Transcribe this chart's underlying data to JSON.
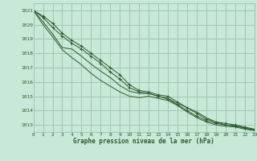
{
  "bg_color": "#c8e8d8",
  "grid_color": "#a0c8b0",
  "line_color": "#2d5a2d",
  "title": "Graphe pression niveau de la mer (hPa)",
  "xlim": [
    0,
    23
  ],
  "ylim": [
    1012.5,
    1021.5
  ],
  "yticks": [
    1013,
    1014,
    1015,
    1016,
    1017,
    1018,
    1019,
    1020,
    1021
  ],
  "xticks": [
    0,
    1,
    2,
    3,
    4,
    5,
    6,
    7,
    8,
    9,
    10,
    11,
    12,
    13,
    14,
    15,
    16,
    17,
    18,
    19,
    20,
    21,
    22,
    23
  ],
  "series": [
    [
      1021.0,
      1020.6,
      1020.1,
      1019.4,
      1018.9,
      1018.5,
      1018.0,
      1017.5,
      1017.0,
      1016.5,
      1015.8,
      1015.4,
      1015.3,
      1015.1,
      1015.0,
      1014.6,
      1014.2,
      1013.8,
      1013.4,
      1013.2,
      1013.1,
      1013.0,
      1012.85,
      1012.7
    ],
    [
      1021.0,
      1020.5,
      1019.8,
      1019.2,
      1018.7,
      1018.3,
      1017.8,
      1017.3,
      1016.7,
      1016.2,
      1015.6,
      1015.3,
      1015.2,
      1015.0,
      1014.8,
      1014.4,
      1014.0,
      1013.6,
      1013.3,
      1013.1,
      1013.0,
      1012.9,
      1012.8,
      1012.65
    ],
    [
      1021.0,
      1020.2,
      1019.35,
      1018.4,
      1018.3,
      1017.8,
      1017.25,
      1016.75,
      1016.3,
      1015.75,
      1015.35,
      1015.2,
      1015.2,
      1015.0,
      1014.85,
      1014.5,
      1014.2,
      1013.9,
      1013.5,
      1013.2,
      1013.0,
      1012.95,
      1012.75,
      1012.65
    ],
    [
      1021.0,
      1020.0,
      1019.15,
      1018.25,
      1017.7,
      1017.2,
      1016.6,
      1016.1,
      1015.7,
      1015.3,
      1015.0,
      1014.9,
      1015.0,
      1014.85,
      1014.7,
      1014.35,
      1013.9,
      1013.5,
      1013.2,
      1013.0,
      1012.9,
      1012.85,
      1012.7,
      1012.6
    ]
  ],
  "marker_series": [
    [
      0,
      1,
      2,
      3,
      4,
      5,
      6,
      7,
      8,
      9,
      10,
      11,
      12,
      13,
      14,
      15,
      16,
      17,
      18,
      19,
      20,
      21,
      22,
      23
    ],
    [
      0,
      1,
      2,
      3,
      4,
      5,
      6,
      7,
      8,
      9,
      10,
      11,
      12,
      13,
      14,
      15,
      16,
      17,
      18,
      19,
      20,
      21,
      22,
      23
    ],
    [
      0,
      1,
      2,
      3,
      4,
      5,
      6,
      7,
      8,
      9,
      10,
      11,
      12,
      13,
      14,
      15,
      16,
      17,
      18,
      19,
      20,
      21,
      22,
      23
    ],
    [
      0,
      1,
      2,
      3,
      4,
      5,
      6,
      7,
      8,
      9,
      10,
      11,
      12,
      13,
      14,
      15,
      16,
      17,
      18,
      19,
      20,
      21,
      22,
      23
    ]
  ]
}
